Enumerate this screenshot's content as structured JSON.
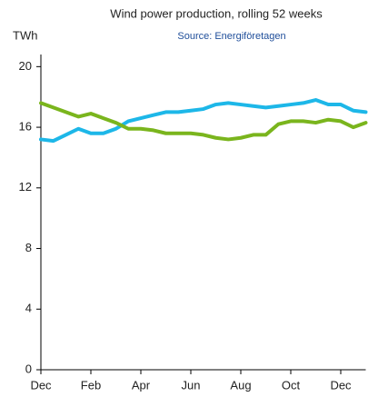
{
  "chart_data": {
    "type": "line",
    "title": "Wind power production, rolling 52 weeks",
    "subtitle": "Source: Energiföretagen",
    "y_label": "TWh",
    "categories": [
      "Dec",
      null,
      null,
      null,
      "Feb",
      null,
      null,
      null,
      "Apr",
      null,
      null,
      null,
      "Jun",
      null,
      null,
      null,
      "Aug",
      null,
      null,
      null,
      "Oct",
      null,
      null,
      null,
      "Dec",
      null,
      null
    ],
    "series": [
      {
        "color": "#1db7e8",
        "values": [
          15.2,
          15.1,
          15.5,
          15.9,
          15.6,
          15.6,
          15.9,
          16.4,
          16.6,
          16.8,
          17.0,
          17.0,
          17.1,
          17.2,
          17.5,
          17.6,
          17.5,
          17.4,
          17.3,
          17.4,
          17.5,
          17.6,
          17.8,
          17.5,
          17.5,
          17.1,
          17.0
        ]
      },
      {
        "color": "#7ab51d",
        "values": [
          17.6,
          17.3,
          17.0,
          16.7,
          16.9,
          16.6,
          16.3,
          15.9,
          15.9,
          15.8,
          15.6,
          15.6,
          15.6,
          15.5,
          15.3,
          15.2,
          15.3,
          15.5,
          15.5,
          16.2,
          16.4,
          16.4,
          16.3,
          16.5,
          16.4,
          16.0,
          16.3
        ]
      }
    ],
    "ylim": [
      0,
      20.8
    ],
    "yticks": [
      0,
      4,
      8,
      12,
      16,
      20
    ],
    "grid": false
  }
}
